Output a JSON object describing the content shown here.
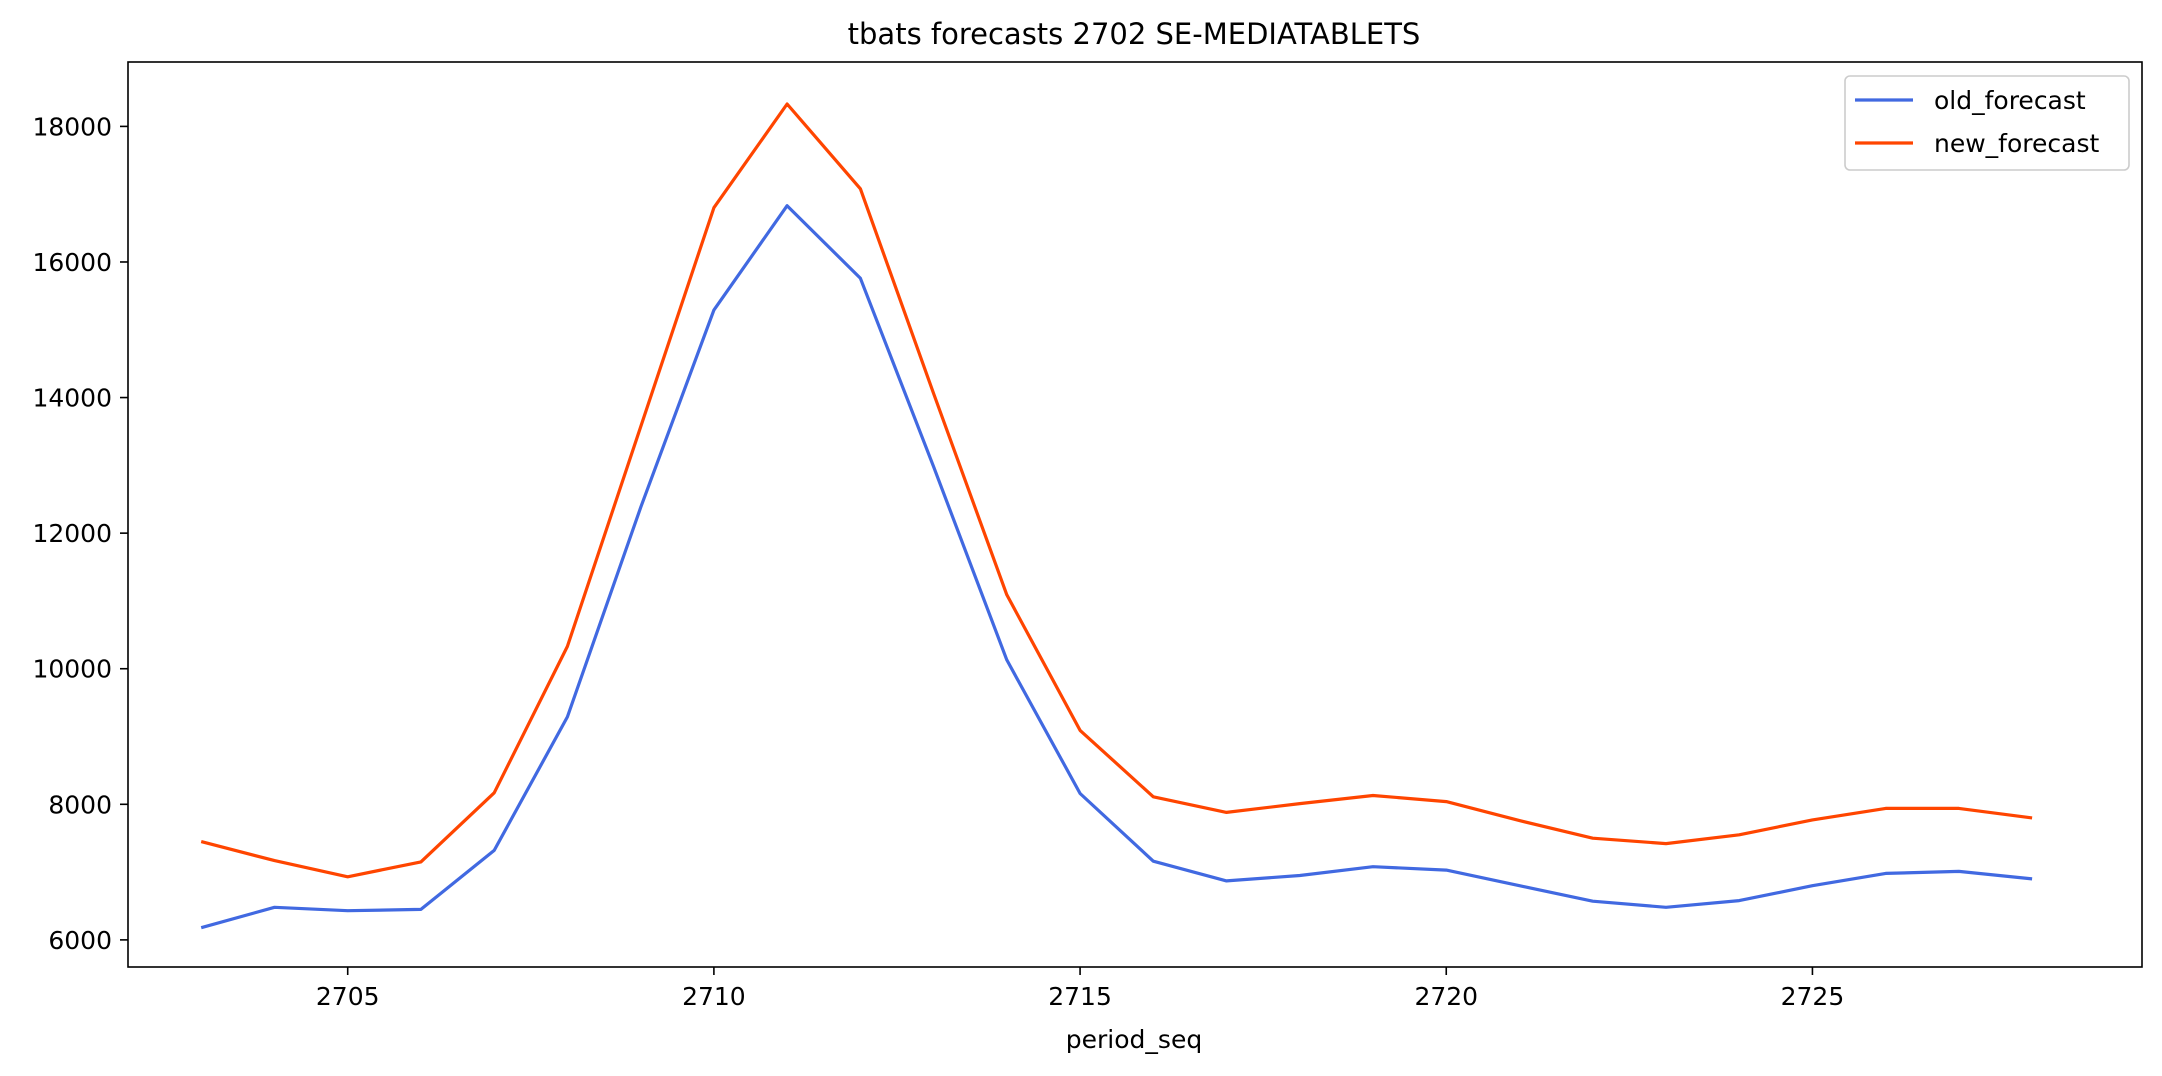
{
  "chart_data": {
    "type": "line",
    "title": "tbats forecasts 2702 SE-MEDIATABLETS",
    "xlabel": "period_seq",
    "ylabel": "",
    "xlim": [
      2702,
      2729.5
    ],
    "ylim": [
      5600,
      18950
    ],
    "x_ticks": [
      2705,
      2710,
      2715,
      2720,
      2725
    ],
    "y_ticks": [
      6000,
      8000,
      10000,
      12000,
      14000,
      16000,
      18000
    ],
    "grid": false,
    "legend_position": "top-right",
    "x": [
      2703,
      2704,
      2705,
      2706,
      2707,
      2708,
      2709,
      2710,
      2711,
      2712,
      2713,
      2714,
      2715,
      2716,
      2717,
      2718,
      2719,
      2720,
      2721,
      2722,
      2723,
      2724,
      2725,
      2726,
      2727,
      2728
    ],
    "series": [
      {
        "name": "old_forecast",
        "color": "#4169e1",
        "values": [
          6180,
          6480,
          6430,
          6450,
          7320,
          9290,
          12380,
          15290,
          16830,
          15760,
          12980,
          10130,
          8160,
          7160,
          6870,
          6950,
          7080,
          7030,
          6800,
          6570,
          6480,
          6580,
          6800,
          6980,
          7010,
          6900
        ]
      },
      {
        "name": "new_forecast",
        "color": "#ff4500",
        "values": [
          7450,
          7170,
          6930,
          7150,
          8170,
          10330,
          13570,
          16800,
          18330,
          17080,
          14060,
          11090,
          9090,
          8110,
          7880,
          8010,
          8130,
          8040,
          7760,
          7500,
          7420,
          7550,
          7770,
          7940,
          7940,
          7800
        ]
      }
    ]
  }
}
